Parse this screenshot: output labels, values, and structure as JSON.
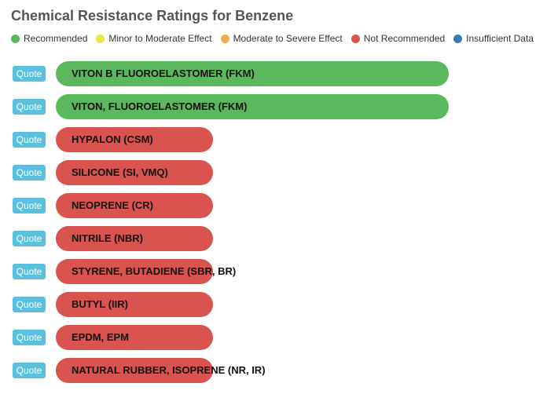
{
  "title": "Chemical Resistance Ratings for Benzene",
  "legend": [
    {
      "label": "Recommended",
      "color": "#5cb85c"
    },
    {
      "label": "Minor to Moderate Effect",
      "color": "#f0e442"
    },
    {
      "label": "Moderate to Severe Effect",
      "color": "#f0ad4e"
    },
    {
      "label": "Not Recommended",
      "color": "#d9534f"
    },
    {
      "label": "Insufficient Data",
      "color": "#337ab7"
    }
  ],
  "quote_label": "Quote",
  "chart_data": {
    "type": "bar",
    "orientation": "horizontal",
    "title": "Chemical Resistance Ratings for Benzene",
    "categories": [
      "VITON B FLUOROELASTOMER (FKM)",
      "VITON, FLUOROELASTOMER (FKM)",
      "HYPALON (CSM)",
      "SILICONE (SI, VMQ)",
      "NEOPRENE (CR)",
      "NITRILE (NBR)",
      "STYRENE, BUTADIENE (SBR, BR)",
      "BUTYL (IIR)",
      "EPDM, EPM",
      "NATURAL RUBBER, ISOPRENE (NR, IR)"
    ],
    "ratings": [
      "Recommended",
      "Recommended",
      "Not Recommended",
      "Not Recommended",
      "Not Recommended",
      "Not Recommended",
      "Not Recommended",
      "Not Recommended",
      "Not Recommended",
      "Not Recommended"
    ],
    "values": [
      5,
      5,
      2,
      2,
      2,
      2,
      2,
      2,
      2,
      2
    ],
    "xlim": [
      0,
      5
    ],
    "legend_position": "top"
  }
}
